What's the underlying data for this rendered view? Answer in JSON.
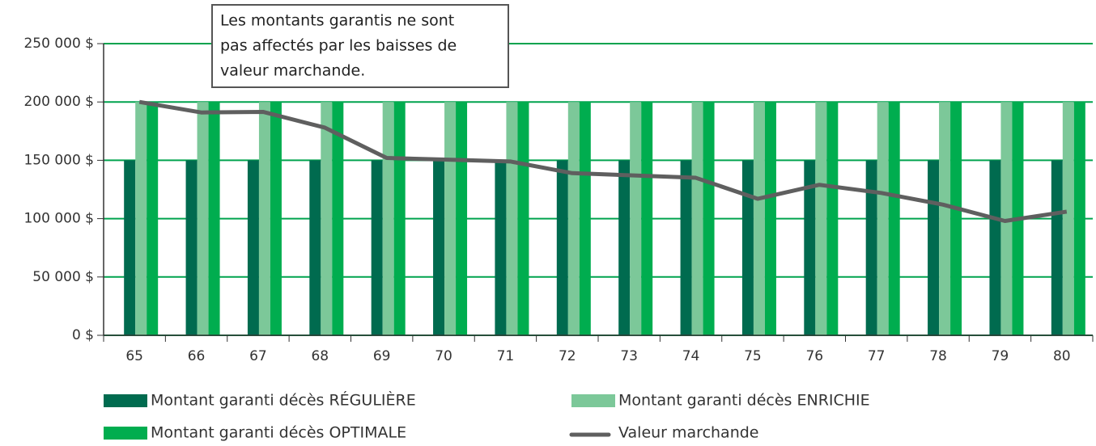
{
  "chart_data": {
    "type": "bar",
    "categories": [
      "65",
      "66",
      "67",
      "68",
      "69",
      "70",
      "71",
      "72",
      "73",
      "74",
      "75",
      "76",
      "77",
      "78",
      "79",
      "80"
    ],
    "series": [
      {
        "name": "Montant garanti décès RÉGULIÈRE",
        "color": "#006b4f",
        "values": [
          150000,
          150000,
          150000,
          150000,
          150000,
          150000,
          150000,
          150000,
          150000,
          150000,
          150000,
          150000,
          150000,
          150000,
          150000,
          150000
        ]
      },
      {
        "name": "Montant garanti décès ENRICHIE",
        "color": "#7cc899",
        "values": [
          200000,
          200000,
          200000,
          200000,
          200000,
          200000,
          200000,
          200000,
          200000,
          200000,
          200000,
          200000,
          200000,
          200000,
          200000,
          200000
        ]
      },
      {
        "name": "Montant garanti décès OPTIMALE",
        "color": "#00ad4f",
        "values": [
          200000,
          200000,
          200000,
          200000,
          200000,
          200000,
          200000,
          200000,
          200000,
          200000,
          200000,
          200000,
          200000,
          200000,
          200000,
          200000
        ]
      },
      {
        "name": "Valeur marchande",
        "type": "line",
        "color": "#5f5f5f",
        "values": [
          200000,
          191000,
          191500,
          178000,
          152000,
          150500,
          149000,
          139000,
          137000,
          135000,
          117000,
          129000,
          122000,
          112000,
          98000,
          106000
        ]
      }
    ],
    "ylim": [
      0,
      250000
    ],
    "yticks": [
      {
        "value": 0,
        "label": "0 $"
      },
      {
        "value": 50000,
        "label": "50 000 $"
      },
      {
        "value": 100000,
        "label": "100 000 $"
      },
      {
        "value": 150000,
        "label": "150 000 $"
      },
      {
        "value": 200000,
        "label": "200 000 $"
      },
      {
        "value": 250000,
        "label": "250 000 $"
      }
    ],
    "grid": true,
    "grid_color": "#00a34e",
    "annotation": [
      "Les montants garantis ne sont",
      "pas affectés par les baisses de",
      "valeur marchande."
    ],
    "legend": "bottom"
  }
}
